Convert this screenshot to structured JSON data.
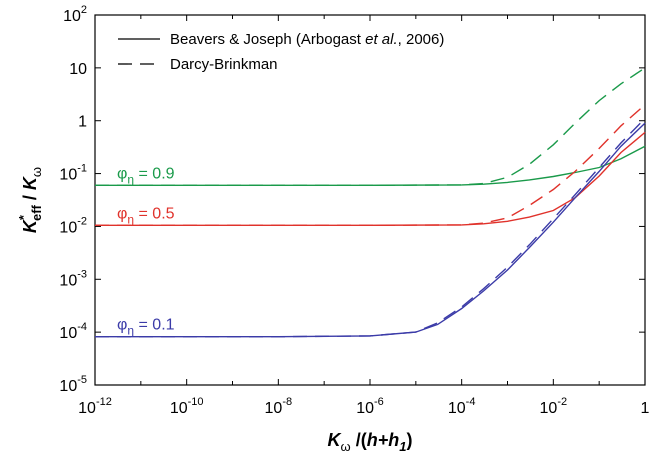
{
  "chart_data": {
    "type": "line",
    "xlabel": "Kω /(h+h1)",
    "ylabel": "K*eff / Kω",
    "x_scale": "log",
    "y_scale": "log",
    "xlim": [
      1e-12,
      1
    ],
    "ylim": [
      1e-05,
      100
    ],
    "grid": false,
    "legend_position": "top-left",
    "x_tick_labels": [
      {
        "value": 1e-12,
        "base": "10",
        "exp": "-12"
      },
      {
        "value": 1e-10,
        "base": "10",
        "exp": "-10"
      },
      {
        "value": 1e-08,
        "base": "10",
        "exp": "-8"
      },
      {
        "value": 1e-06,
        "base": "10",
        "exp": "-6"
      },
      {
        "value": 0.0001,
        "base": "10",
        "exp": "-4"
      },
      {
        "value": 0.01,
        "base": "10",
        "exp": "-2"
      },
      {
        "value": 1,
        "base": "1",
        "exp": ""
      }
    ],
    "y_tick_labels": [
      {
        "value": 100,
        "base": "10",
        "exp": "2"
      },
      {
        "value": 10,
        "base": "10",
        "exp": ""
      },
      {
        "value": 1,
        "base": "1",
        "exp": ""
      },
      {
        "value": 0.1,
        "base": "10",
        "exp": "-1"
      },
      {
        "value": 0.01,
        "base": "10",
        "exp": "-2"
      },
      {
        "value": 0.001,
        "base": "10",
        "exp": "-3"
      },
      {
        "value": 0.0001,
        "base": "10",
        "exp": "-4"
      },
      {
        "value": 1e-05,
        "base": "10",
        "exp": "-5"
      }
    ],
    "legend": [
      {
        "style": "solid",
        "text_before": "Beavers & Joseph (Arbogast ",
        "text_italic": "et al.",
        "text_after": ", 2006)"
      },
      {
        "style": "dashed",
        "text_before": "Darcy-Brinkman",
        "text_italic": "",
        "text_after": ""
      }
    ],
    "annotations": [
      {
        "symbol": "φ",
        "sub": "η",
        "text": " = 0.9",
        "color": "#1a9a4a",
        "x": 1e-12,
        "y": 0.06
      },
      {
        "symbol": "φ",
        "sub": "η",
        "text": " = 0.5",
        "color": "#e0322b",
        "x": 1e-12,
        "y": 0.0105
      },
      {
        "symbol": "φ",
        "sub": "η",
        "text": " = 0.1",
        "color": "#3b3ba8",
        "x": 1e-12,
        "y": 8.2e-05
      }
    ],
    "series": [
      {
        "group": "phi=0.9",
        "style": "solid",
        "color": "#1a9a4a",
        "x": [
          1e-12,
          1e-08,
          1e-06,
          0.0001,
          0.0003,
          0.001,
          0.003,
          0.01,
          0.03,
          0.1,
          0.3,
          1
        ],
        "y": [
          0.06,
          0.06,
          0.06,
          0.061,
          0.063,
          0.068,
          0.076,
          0.088,
          0.105,
          0.13,
          0.19,
          0.33
        ]
      },
      {
        "group": "phi=0.9",
        "style": "dashed",
        "color": "#1a9a4a",
        "x": [
          1e-12,
          1e-08,
          1e-06,
          0.0001,
          0.0003,
          0.001,
          0.003,
          0.01,
          0.03,
          0.1,
          0.3,
          1
        ],
        "y": [
          0.06,
          0.06,
          0.06,
          0.061,
          0.065,
          0.085,
          0.15,
          0.35,
          0.9,
          2.4,
          5.0,
          10
        ]
      },
      {
        "group": "phi=0.5",
        "style": "solid",
        "color": "#e0322b",
        "x": [
          1e-12,
          1e-08,
          1e-06,
          0.0001,
          0.0003,
          0.001,
          0.003,
          0.01,
          0.03,
          0.1,
          0.3,
          1
        ],
        "y": [
          0.0105,
          0.0105,
          0.0105,
          0.0107,
          0.0112,
          0.0125,
          0.015,
          0.02,
          0.035,
          0.09,
          0.25,
          0.6
        ]
      },
      {
        "group": "phi=0.5",
        "style": "dashed",
        "color": "#e0322b",
        "x": [
          1e-12,
          1e-08,
          1e-06,
          0.0001,
          0.0003,
          0.001,
          0.003,
          0.01,
          0.03,
          0.1,
          0.3,
          1
        ],
        "y": [
          0.0105,
          0.0105,
          0.0105,
          0.0107,
          0.0115,
          0.0145,
          0.025,
          0.05,
          0.11,
          0.3,
          0.8,
          2.0
        ]
      },
      {
        "group": "phi=0.1",
        "style": "solid",
        "color": "#3b3ba8",
        "x": [
          1e-12,
          1e-08,
          1e-06,
          1e-05,
          3e-05,
          0.0001,
          0.0003,
          0.001,
          0.003,
          0.01,
          0.03,
          0.1,
          0.3,
          1
        ],
        "y": [
          8.2e-05,
          8.2e-05,
          8.5e-05,
          0.0001,
          0.00014,
          0.00028,
          0.0006,
          0.0015,
          0.004,
          0.012,
          0.035,
          0.11,
          0.33,
          0.9
        ]
      },
      {
        "group": "phi=0.1",
        "style": "dashed",
        "color": "#3b3ba8",
        "x": [
          1e-12,
          1e-08,
          1e-06,
          1e-05,
          3e-05,
          0.0001,
          0.0003,
          0.001,
          0.003,
          0.01,
          0.03,
          0.1,
          0.3,
          1
        ],
        "y": [
          8.2e-05,
          8.2e-05,
          8.5e-05,
          0.0001,
          0.00015,
          0.0003,
          0.00066,
          0.0017,
          0.0045,
          0.014,
          0.04,
          0.13,
          0.38,
          1.1
        ]
      }
    ]
  }
}
